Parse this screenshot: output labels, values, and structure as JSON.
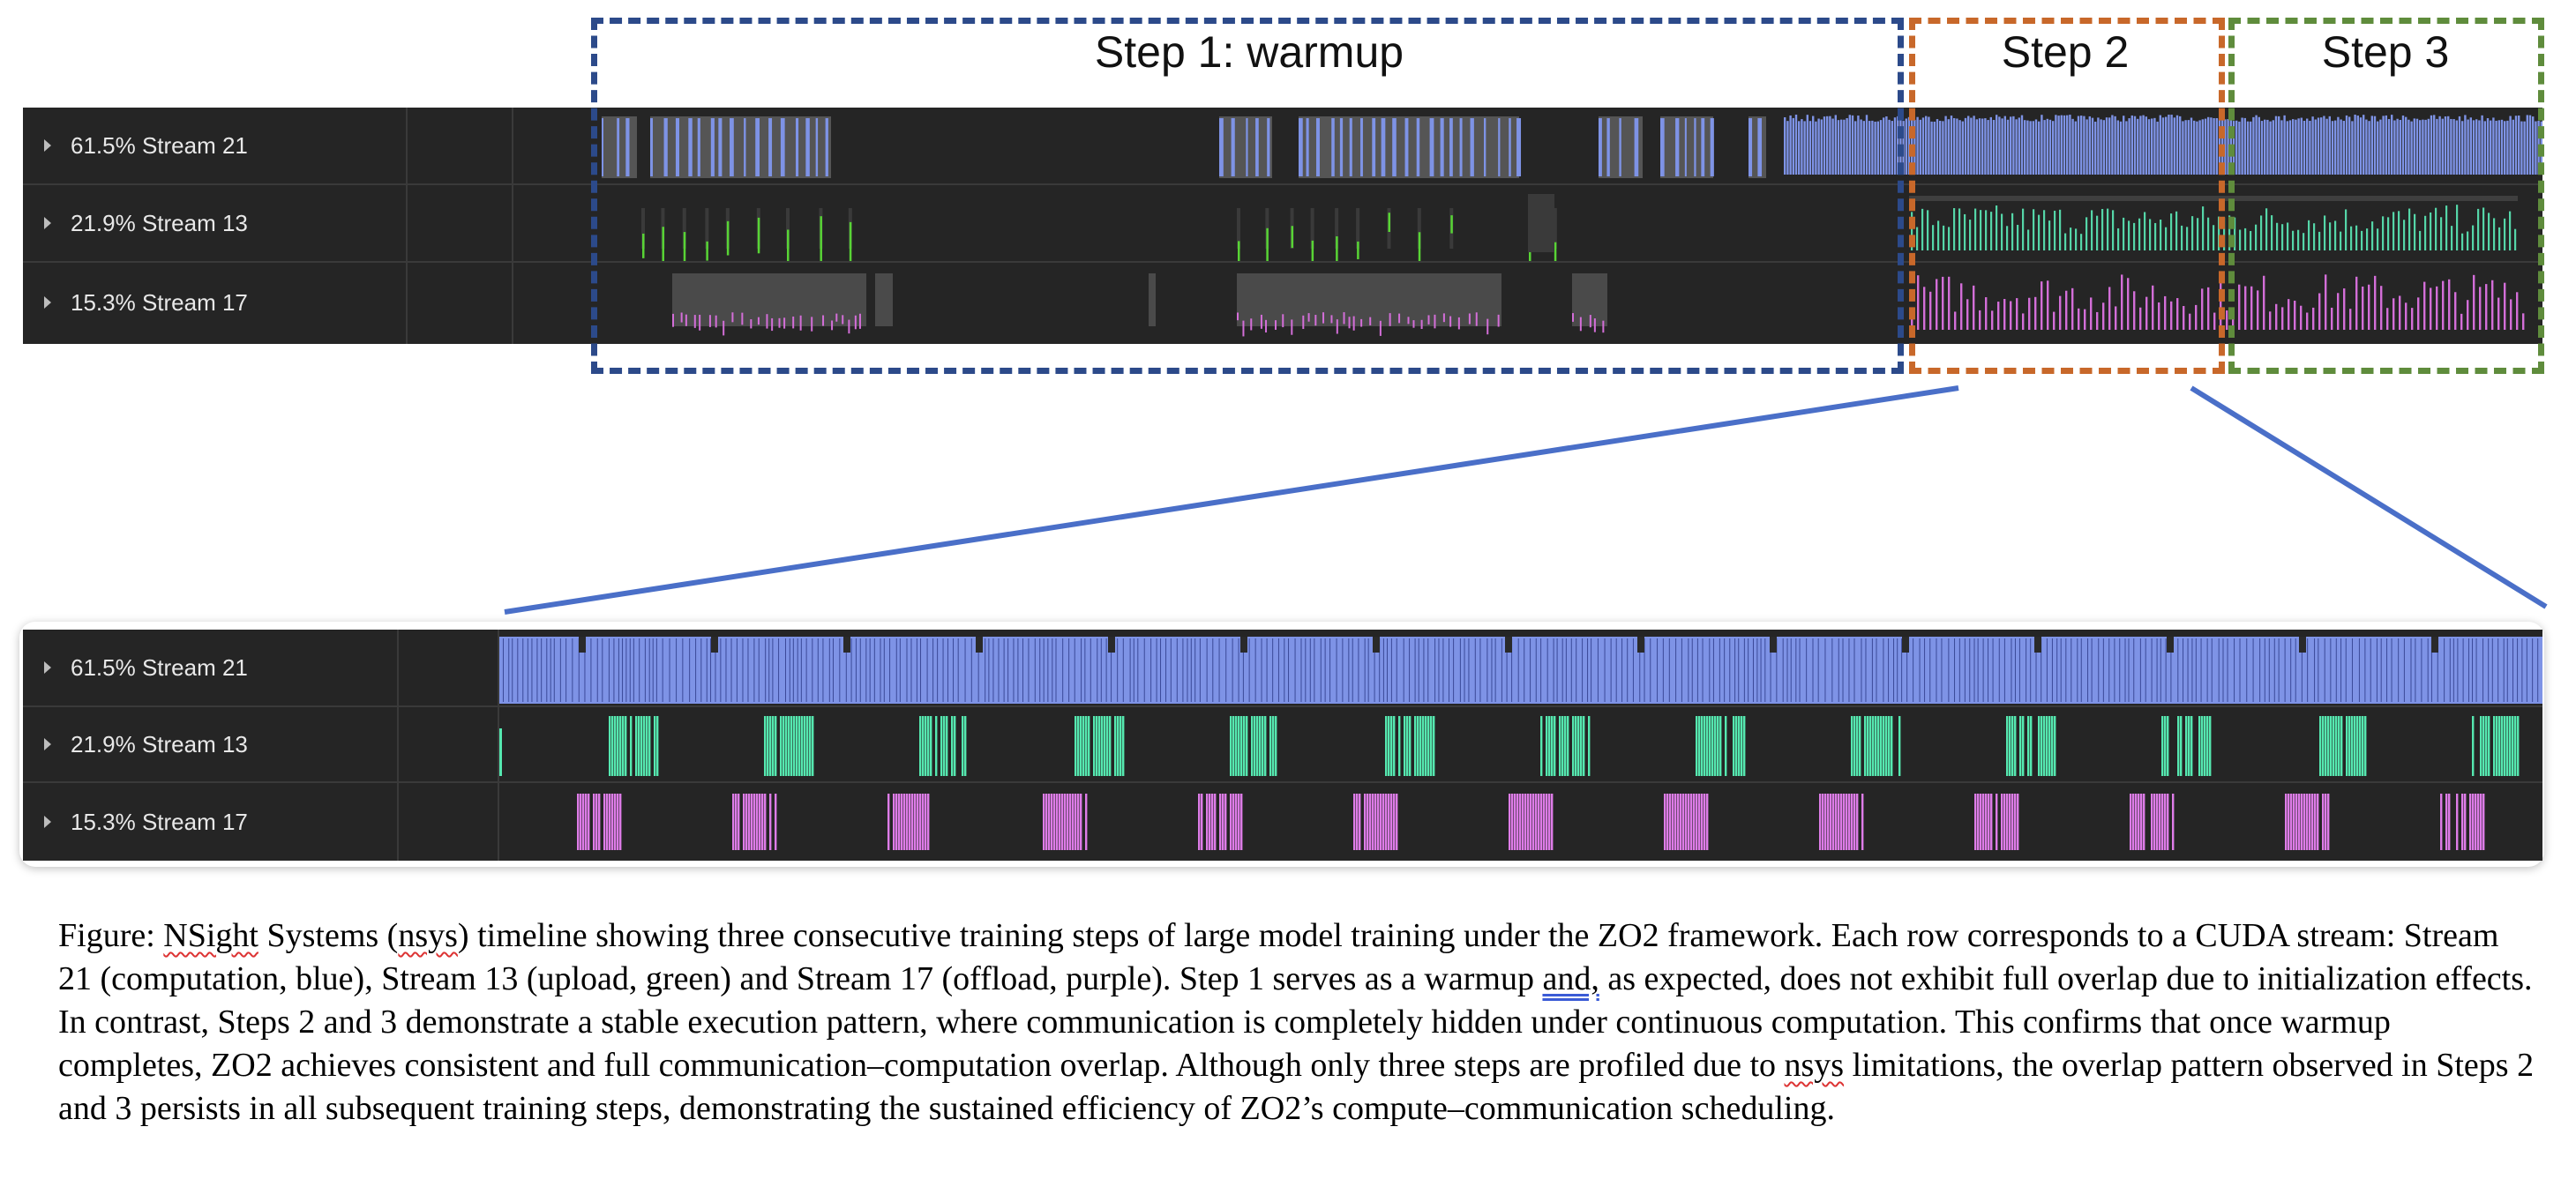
{
  "steps": [
    {
      "label": "Step 1: warmup",
      "color": "#2c4a8a"
    },
    {
      "label": "Step 2",
      "color": "#c8682a"
    },
    {
      "label": "Step 3",
      "color": "#5f8c3c"
    }
  ],
  "top_timeline": {
    "rows": [
      {
        "label": "61.5% Stream 21",
        "stream": "Stream 21",
        "share": "61.5%",
        "color": "#7e93e6"
      },
      {
        "label": "21.9% Stream 13",
        "stream": "Stream 13",
        "share": "21.9%",
        "color": "#58d435"
      },
      {
        "label": "15.3% Stream 17",
        "stream": "Stream 17",
        "share": "15.3%",
        "color": "#d36ed8"
      }
    ],
    "step2_stream13_color": "#55d6a8",
    "step3_stream13_color": "#55d6a8"
  },
  "zoom_timeline": {
    "rows": [
      {
        "label": "61.5% Stream 21",
        "stream": "Stream 21",
        "share": "61.5%",
        "color": "#7e93e6"
      },
      {
        "label": "21.9% Stream 13",
        "stream": "Stream 13",
        "share": "21.9%",
        "color": "#55e8b0"
      },
      {
        "label": "15.3% Stream 17",
        "stream": "Stream 17",
        "share": "15.3%",
        "color": "#de7ce8"
      }
    ]
  },
  "zoom_connector_color": "#4a6fc8",
  "caption": {
    "p1": "Figure: ",
    "w_nsight": "NSight",
    "p2": " Systems (",
    "w_nsys1": "nsys",
    "p3": ") timeline showing three consecutive training steps of large model training under the ZO2 framework. Each row corresponds to a CUDA stream: Stream 21 (computation, blue), Stream 13 (upload, green) and Stream 17 (offload, purple). Step 1 serves as a warmup ",
    "w_and": "and,",
    "p4": " as expected, does not exhibit full overlap due to initialization effects. In contrast, Steps 2 and 3 demonstrate a stable execution pattern, where communication is completely hidden under continuous computation. This confirms that once warmup completes, ZO2 achieves consistent and full communication–computation overlap. Although only three steps are profiled due to ",
    "w_nsys2": "nsys",
    "p5": " limitations, the overlap pattern observed in Steps 2 and 3 persists in all subsequent training steps, demonstrating the sustained efficiency of ZO2’s compute–communication scheduling."
  }
}
